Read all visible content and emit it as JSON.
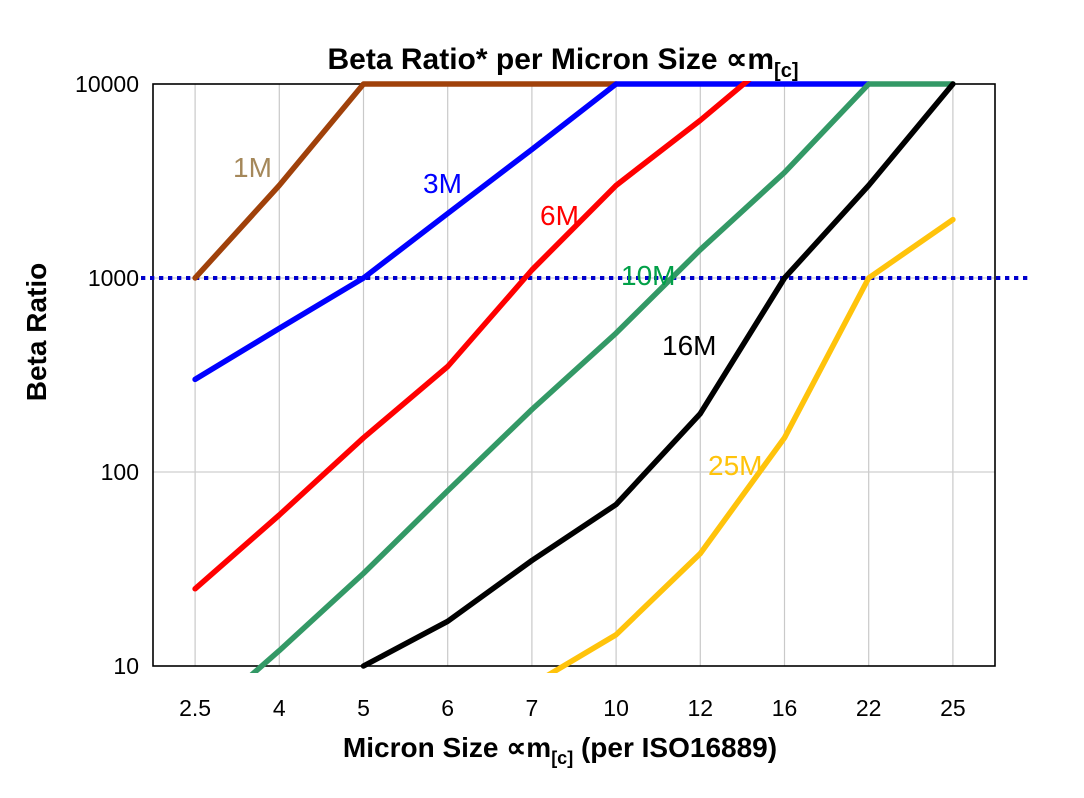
{
  "title": {
    "main": "Beta Ratio* per Micron Size ∝m",
    "sub": "[c]"
  },
  "y_axis": {
    "label": "Beta Ratio"
  },
  "x_axis": {
    "label_pre": "Micron Size ∝m",
    "label_sub": "[c]",
    "label_post": " (per ISO16889)"
  },
  "chart_data": {
    "type": "line",
    "x_type": "category",
    "y_scale": "log",
    "title": "Beta Ratio* per Micron Size ∝m[c]",
    "xlabel": "Micron Size ∝m[c] (per ISO16889)",
    "ylabel": "Beta Ratio",
    "categories": [
      "2.5",
      "4",
      "5",
      "6",
      "7",
      "10",
      "12",
      "16",
      "22",
      "25"
    ],
    "y_ticks": [
      10000,
      1000,
      100,
      10
    ],
    "y_gridlines": [
      1000,
      100
    ],
    "ylim": [
      10,
      10000
    ],
    "grid": true,
    "legend": "inline-colored-labels",
    "reference_line": {
      "value": 1000,
      "style": "dotted",
      "color": "#0000CD"
    },
    "series": [
      {
        "name": "1M",
        "line_color": "#A0410A",
        "label_color": "#A5885A",
        "values": [
          1000,
          3000,
          10000,
          10000,
          10000,
          10000,
          null,
          null,
          null,
          null
        ]
      },
      {
        "name": "3M",
        "line_color": "#0000FF",
        "label_color": "#0000FF",
        "values": [
          300,
          550,
          1000,
          2150,
          4600,
          10000,
          10000,
          10000,
          10000,
          null
        ]
      },
      {
        "name": "6M",
        "line_color": "#FF0000",
        "label_color": "#FF0000",
        "values": [
          25,
          60,
          150,
          350,
          1100,
          3000,
          6500,
          15000,
          null,
          null
        ]
      },
      {
        "name": "10M",
        "line_color": "#339966",
        "label_color": "#01A048",
        "values": [
          5,
          12,
          30,
          80,
          210,
          520,
          1400,
          3500,
          10000,
          10000
        ]
      },
      {
        "name": "16M",
        "line_color": "#000000",
        "label_color": "#000000",
        "values": [
          null,
          null,
          10,
          17,
          35,
          68,
          200,
          1000,
          3000,
          10000
        ]
      },
      {
        "name": "25M",
        "line_color": "#FFC30B",
        "label_color": "#FFC30B",
        "values": [
          null,
          null,
          null,
          null,
          8,
          14.5,
          38,
          150,
          1000,
          2000
        ]
      }
    ]
  }
}
